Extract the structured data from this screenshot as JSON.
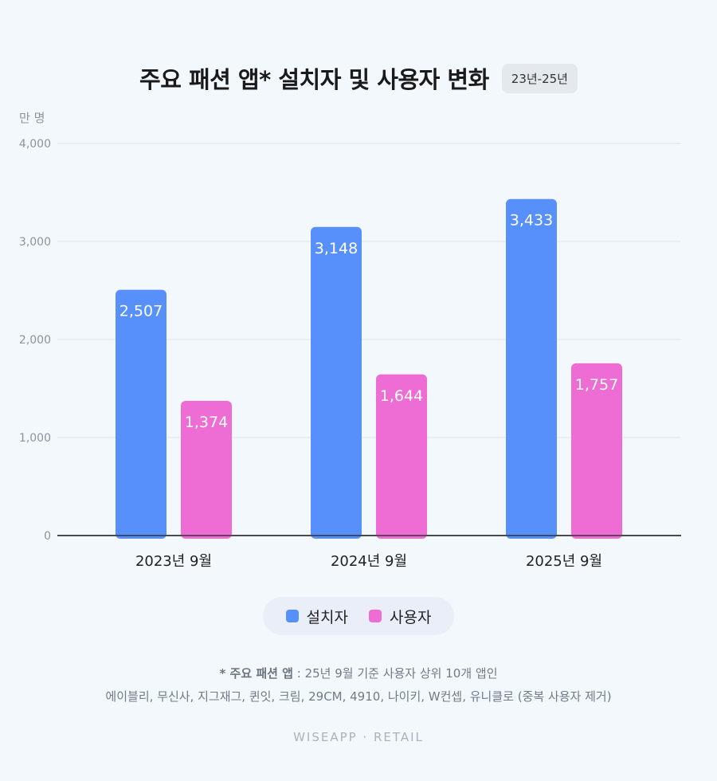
{
  "title": "주요 패션 앱* 설치자 및 사용자 변화",
  "period_badge": "23년-25년",
  "chart_data": {
    "type": "bar",
    "categories": [
      "2023년 9월",
      "2024년 9월",
      "2025년 9월"
    ],
    "series": [
      {
        "name": "설치자",
        "values": [
          2507,
          3148,
          3433
        ],
        "labels": [
          "2,507",
          "3,148",
          "3,433"
        ],
        "color": "#5790fb"
      },
      {
        "name": "사용자",
        "values": [
          1374,
          1644,
          1757
        ],
        "labels": [
          "1,374",
          "1,644",
          "1,757"
        ],
        "color": "#ee6dd4"
      }
    ],
    "yunit": "만 명",
    "ylim": [
      0,
      4000
    ],
    "yticks": [
      0,
      1000,
      2000,
      3000,
      4000
    ],
    "ytick_labels": [
      "0",
      "1,000",
      "2,000",
      "3,000",
      "4,000"
    ],
    "grid": true,
    "legend": "bottom"
  },
  "footnote": {
    "head": "* 주요 패션 앱",
    "line1": " : 25년 9월 기준 사용자 상위 10개 앱인",
    "line2": "에이블리, 무신사, 지그재그, 퀸잇, 크림, 29CM, 4910, 나이키, W컨셉, 유니클로 (중복 사용자 제거)"
  },
  "brand": "WISEAPP · RETAIL"
}
